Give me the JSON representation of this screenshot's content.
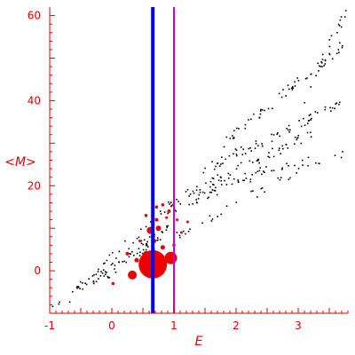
{
  "chart_data": {
    "type": "scatter",
    "xlabel": "E",
    "ylabel": "<M>",
    "xlim": [
      -1,
      3.8
    ],
    "ylim": [
      -10,
      62
    ],
    "x_ticks": [
      -1,
      0,
      1,
      2,
      3
    ],
    "y_ticks": [
      0,
      20,
      40,
      60
    ],
    "colors": {
      "axis": "#dd0000",
      "points": "#000000",
      "markers": "#ee0000",
      "blue_line": "#0000ee",
      "magenta_line": "#cc00cc"
    },
    "vertical_lines": [
      {
        "x": 0.66,
        "color": "#0000ee",
        "width": 4
      },
      {
        "x": 1.0,
        "color": "#cc00cc",
        "width": 2
      }
    ],
    "band_points": [
      {
        "x": [
          -0.95,
          0.78
        ],
        "y": [
          -8,
          7
        ],
        "n": 22
      },
      {
        "x": [
          -0.85,
          0.9
        ],
        "y": [
          -8,
          10
        ],
        "n": 24
      },
      {
        "x": [
          -0.75,
          1.0
        ],
        "y": [
          -7,
          12
        ],
        "n": 24
      },
      {
        "x": [
          -0.55,
          0.85
        ],
        "y": [
          -4,
          14
        ],
        "n": 22
      },
      {
        "x": [
          -0.2,
          0.9
        ],
        "y": [
          -3,
          10
        ],
        "n": 18
      },
      {
        "x": [
          0.9,
          2.5
        ],
        "y": [
          14,
          24
        ],
        "n": 40
      },
      {
        "x": [
          0.9,
          3.2
        ],
        "y": [
          16,
          32
        ],
        "n": 60
      },
      {
        "x": [
          1.5,
          3.8
        ],
        "y": [
          24,
          40
        ],
        "n": 65
      },
      {
        "x": [
          1.0,
          3.2
        ],
        "y": [
          8,
          25
        ],
        "n": 30
      },
      {
        "x": [
          1.2,
          3.8
        ],
        "y": [
          18,
          28
        ],
        "n": 28
      },
      {
        "x": [
          1.8,
          3.8
        ],
        "y": [
          30,
          54
        ],
        "n": 60
      },
      {
        "x": [
          3.1,
          3.8
        ],
        "y": [
          40,
          62
        ],
        "n": 18
      }
    ],
    "marker_points": [
      {
        "x": 0.66,
        "y": 1.5,
        "size": 16
      },
      {
        "x": 0.95,
        "y": 3.0,
        "size": 7
      },
      {
        "x": 0.33,
        "y": -1.0,
        "size": 5
      },
      {
        "x": 0.62,
        "y": 9.5,
        "size": 4
      },
      {
        "x": 0.75,
        "y": 10.0,
        "size": 3
      },
      {
        "x": 0.55,
        "y": 4.0,
        "size": 3
      },
      {
        "x": 0.82,
        "y": 5.5,
        "size": 2.5
      },
      {
        "x": 0.4,
        "y": 2.5,
        "size": 2.5
      },
      {
        "x": 0.25,
        "y": 4.0,
        "size": 2
      },
      {
        "x": 0.02,
        "y": -3.0,
        "size": 1.8
      },
      {
        "x": 0.72,
        "y": 12.0,
        "size": 2
      },
      {
        "x": 0.92,
        "y": 14.0,
        "size": 2
      },
      {
        "x": 0.82,
        "y": 15.5,
        "size": 1.8
      },
      {
        "x": 0.72,
        "y": 15.0,
        "size": 1.8
      },
      {
        "x": 0.55,
        "y": 13.0,
        "size": 1.8
      },
      {
        "x": 0.68,
        "y": 7.0,
        "size": 2.5
      },
      {
        "x": 1.05,
        "y": 12.0,
        "size": 1.5
      },
      {
        "x": 1.12,
        "y": 9.0,
        "size": 1.5
      },
      {
        "x": 1.22,
        "y": 11.5,
        "size": 1.5
      },
      {
        "x": 1.0,
        "y": 6.0,
        "size": 1.8
      },
      {
        "x": 0.45,
        "y": 7.0,
        "size": 1.5
      },
      {
        "x": 0.88,
        "y": 12.5,
        "size": 1.5
      }
    ]
  }
}
